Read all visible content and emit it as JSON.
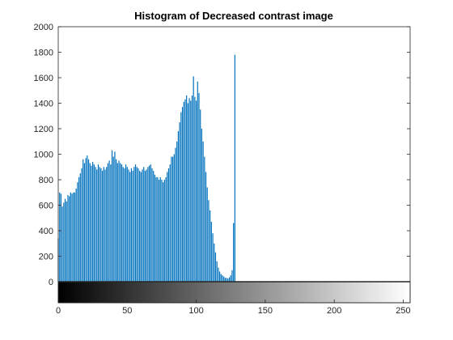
{
  "chart_data": {
    "type": "bar",
    "title": "Histogram of Decreased contrast image",
    "xlabel": "",
    "ylabel": "",
    "xlim": [
      0,
      255
    ],
    "ylim": [
      0,
      2000
    ],
    "xticks": [
      0,
      50,
      100,
      150,
      200,
      250
    ],
    "yticks": [
      0,
      200,
      400,
      600,
      800,
      1000,
      1200,
      1400,
      1600,
      1800,
      2000
    ],
    "grid": false,
    "legend": "none",
    "colorbar": "grayscale 0-255 below x-axis",
    "bar_color": "#0072BD",
    "x": [
      0,
      1,
      2,
      3,
      4,
      5,
      6,
      7,
      8,
      9,
      10,
      11,
      12,
      13,
      14,
      15,
      16,
      17,
      18,
      19,
      20,
      21,
      22,
      23,
      24,
      25,
      26,
      27,
      28,
      29,
      30,
      31,
      32,
      33,
      34,
      35,
      36,
      37,
      38,
      39,
      40,
      41,
      42,
      43,
      44,
      45,
      46,
      47,
      48,
      49,
      50,
      51,
      52,
      53,
      54,
      55,
      56,
      57,
      58,
      59,
      60,
      61,
      62,
      63,
      64,
      65,
      66,
      67,
      68,
      69,
      70,
      71,
      72,
      73,
      74,
      75,
      76,
      77,
      78,
      79,
      80,
      81,
      82,
      83,
      84,
      85,
      86,
      87,
      88,
      89,
      90,
      91,
      92,
      93,
      94,
      95,
      96,
      97,
      98,
      99,
      100,
      101,
      102,
      103,
      104,
      105,
      106,
      107,
      108,
      109,
      110,
      111,
      112,
      113,
      114,
      115,
      116,
      117,
      118,
      119,
      120,
      121,
      122,
      123,
      124,
      125,
      126,
      127,
      128
    ],
    "values": [
      340,
      700,
      690,
      590,
      620,
      650,
      630,
      680,
      670,
      700,
      690,
      700,
      700,
      730,
      780,
      820,
      850,
      890,
      960,
      930,
      970,
      990,
      960,
      930,
      910,
      940,
      920,
      900,
      880,
      920,
      900,
      890,
      870,
      900,
      880,
      900,
      930,
      950,
      920,
      1030,
      980,
      1020,
      960,
      930,
      950,
      930,
      920,
      900,
      890,
      920,
      900,
      880,
      860,
      890,
      870,
      900,
      920,
      900,
      890,
      870,
      860,
      880,
      900,
      870,
      880,
      900,
      910,
      920,
      890,
      870,
      840,
      820,
      820,
      800,
      820,
      800,
      780,
      800,
      820,
      860,
      890,
      920,
      980,
      980,
      1000,
      1050,
      1100,
      1180,
      1250,
      1330,
      1370,
      1410,
      1430,
      1460,
      1400,
      1440,
      1420,
      1460,
      1610,
      1450,
      1420,
      1570,
      1480,
      1350,
      1200,
      1100,
      980,
      860,
      740,
      640,
      560,
      470,
      380,
      300,
      230,
      160,
      110,
      80,
      60,
      50,
      40,
      30,
      30,
      25,
      35,
      50,
      90,
      460,
      1780
    ]
  }
}
